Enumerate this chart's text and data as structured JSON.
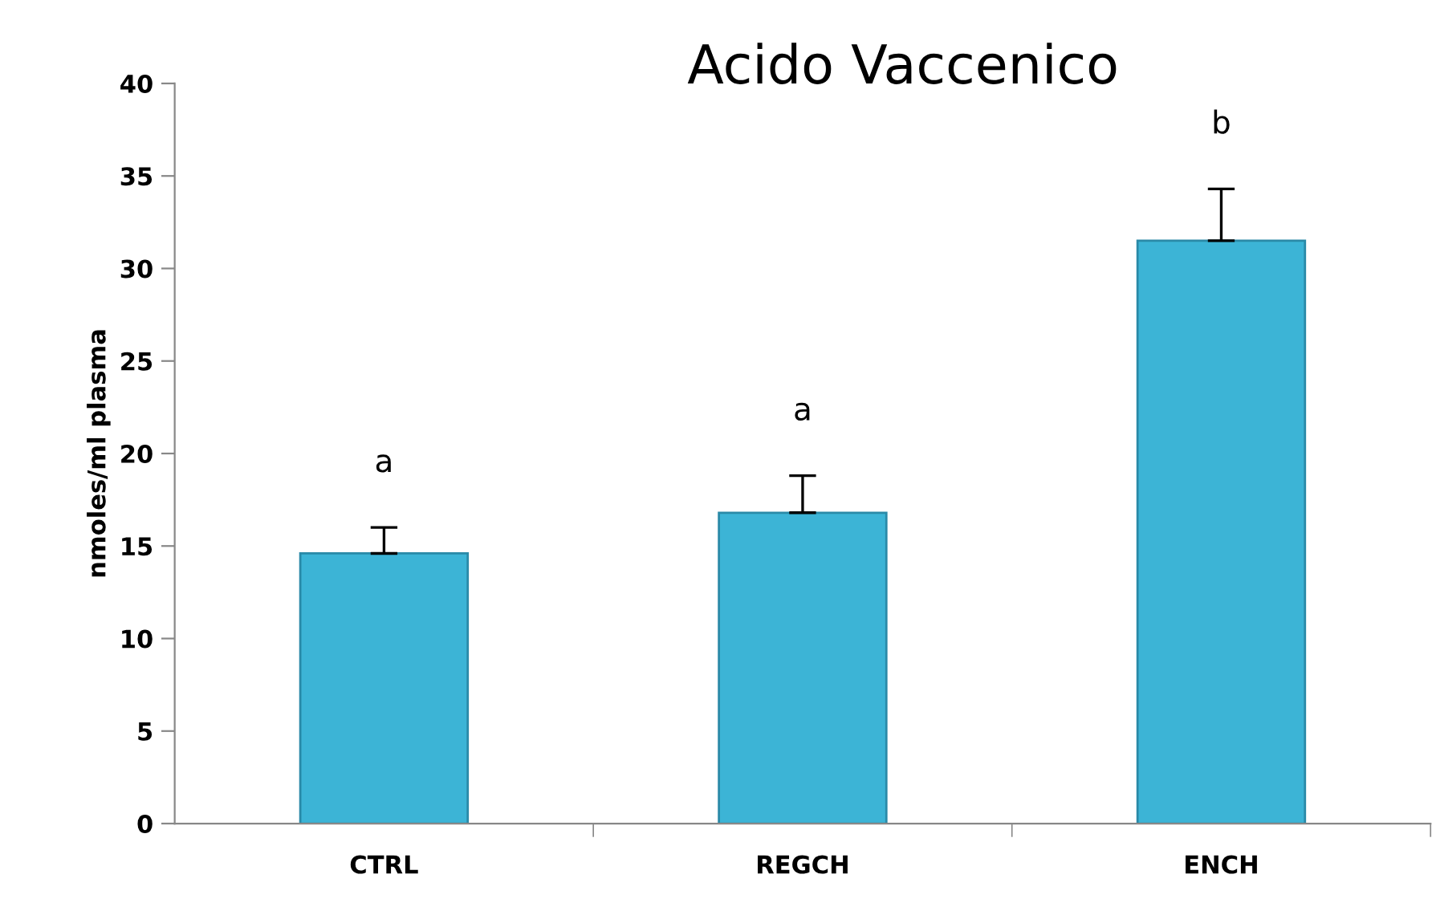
{
  "chart_data": {
    "type": "bar",
    "title": "Acido Vaccenico",
    "ylabel": "nmoles/ml plasma",
    "categories": [
      "CTRL",
      "REGCH",
      "ENCH"
    ],
    "values": [
      14.6,
      16.8,
      31.5
    ],
    "errors": [
      [
        14.6,
        16.0
      ],
      [
        16.8,
        18.8
      ],
      [
        31.5,
        34.3
      ]
    ],
    "color": "#3cb4d6",
    "ylim": [
      0,
      40
    ],
    "yticks": [
      0,
      5,
      10,
      15,
      20,
      25,
      30,
      35,
      40
    ],
    "grid": false,
    "annotations": [
      "a",
      "a",
      "b"
    ]
  }
}
